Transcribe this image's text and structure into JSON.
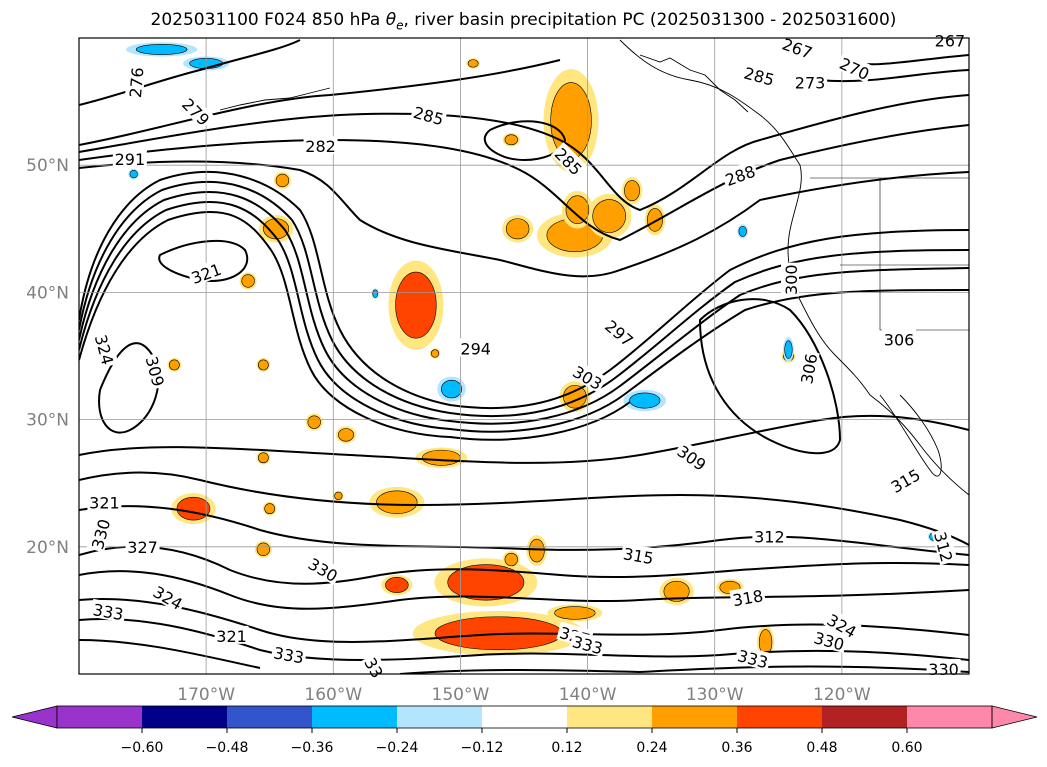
{
  "title": {
    "prefix": "2025031100 F024 850 hPa ",
    "theta": "θ",
    "theta_sub": "e",
    "suffix": ", river basin precipitation PC (2025031300 - 2025031600)"
  },
  "chart_data": {
    "type": "contour-map",
    "title": "2025031100 F024 850 hPa θe, river basin precipitation PC (2025031300 - 2025031600)",
    "lon_range": [
      -180,
      -110
    ],
    "lat_range": [
      10,
      60
    ],
    "grid": true,
    "lat_ticks": [
      {
        "value": 20,
        "label": "20°N"
      },
      {
        "value": 30,
        "label": "30°N"
      },
      {
        "value": 40,
        "label": "40°N"
      },
      {
        "value": 50,
        "label": "50°N"
      }
    ],
    "lon_ticks": [
      {
        "value": -170,
        "label": "170°W"
      },
      {
        "value": -160,
        "label": "160°W"
      },
      {
        "value": -150,
        "label": "150°W"
      },
      {
        "value": -140,
        "label": "140°W"
      },
      {
        "value": -130,
        "label": "130°W"
      },
      {
        "value": -120,
        "label": "120°W"
      }
    ],
    "colorbar": {
      "ticks": [
        "−0.60",
        "−0.48",
        "−0.36",
        "−0.24",
        "−0.12",
        "0.12",
        "0.24",
        "0.36",
        "0.48",
        "0.60"
      ],
      "colors": [
        "#9933cc",
        "#000088",
        "#3355cc",
        "#00bbff",
        "#b3e5ff",
        "#ffffff",
        "#ffe680",
        "#ffa000",
        "#ff4400",
        "#b22222",
        "#ff88aa"
      ]
    },
    "contour_labels": [
      {
        "text": "276",
        "lon": -175.5,
        "lat": 56.5,
        "angle": 85
      },
      {
        "text": "279",
        "lon": -170.8,
        "lat": 54.2,
        "angle": -45
      },
      {
        "text": "282",
        "lon": -161.0,
        "lat": 51.5,
        "angle": 0
      },
      {
        "text": "291",
        "lon": -176.0,
        "lat": 50.5,
        "angle": 0
      },
      {
        "text": "321",
        "lon": -170.0,
        "lat": 41.5,
        "angle": 20
      },
      {
        "text": "285",
        "lon": -152.5,
        "lat": 53.9,
        "angle": -15
      },
      {
        "text": "285",
        "lon": -141.5,
        "lat": 50.3,
        "angle": -45
      },
      {
        "text": "267",
        "lon": -123.5,
        "lat": 59.2,
        "angle": -20
      },
      {
        "text": "267",
        "lon": -111.5,
        "lat": 59.8,
        "angle": 0
      },
      {
        "text": "270",
        "lon": -119.0,
        "lat": 57.6,
        "angle": -25
      },
      {
        "text": "285",
        "lon": -126.5,
        "lat": 57.0,
        "angle": -15
      },
      {
        "text": "273",
        "lon": -122.5,
        "lat": 56.5,
        "angle": 0
      },
      {
        "text": "288",
        "lon": -128.0,
        "lat": 49.2,
        "angle": 20
      },
      {
        "text": "300",
        "lon": -124.0,
        "lat": 41.0,
        "angle": 90
      },
      {
        "text": "294",
        "lon": -148.8,
        "lat": 35.6,
        "angle": 0
      },
      {
        "text": "297",
        "lon": -137.5,
        "lat": 36.8,
        "angle": -40
      },
      {
        "text": "303",
        "lon": -140.0,
        "lat": 33.3,
        "angle": -30
      },
      {
        "text": "306",
        "lon": -122.6,
        "lat": 34.0,
        "angle": 80
      },
      {
        "text": "306",
        "lon": -115.5,
        "lat": 36.3,
        "angle": 0
      },
      {
        "text": "324",
        "lon": -178.0,
        "lat": 35.5,
        "angle": -75
      },
      {
        "text": "309",
        "lon": -174.0,
        "lat": 33.8,
        "angle": -75
      },
      {
        "text": "309",
        "lon": -131.8,
        "lat": 27.0,
        "angle": -35
      },
      {
        "text": "315",
        "lon": -115.0,
        "lat": 25.2,
        "angle": 30
      },
      {
        "text": "312",
        "lon": -125.7,
        "lat": 20.8,
        "angle": 0
      },
      {
        "text": "312",
        "lon": -112.0,
        "lat": 20.0,
        "angle": -75
      },
      {
        "text": "321",
        "lon": -178.0,
        "lat": 23.5,
        "angle": 0
      },
      {
        "text": "330",
        "lon": -178.3,
        "lat": 21.0,
        "angle": 75
      },
      {
        "text": "327",
        "lon": -175.0,
        "lat": 20.0,
        "angle": 0
      },
      {
        "text": "315",
        "lon": -136.0,
        "lat": 19.3,
        "angle": -10
      },
      {
        "text": "330",
        "lon": -160.8,
        "lat": 18.2,
        "angle": -30
      },
      {
        "text": "318",
        "lon": -127.4,
        "lat": 16.0,
        "angle": 10
      },
      {
        "text": "324",
        "lon": -173.0,
        "lat": 16.0,
        "angle": -30
      },
      {
        "text": "333",
        "lon": -177.7,
        "lat": 14.9,
        "angle": -10
      },
      {
        "text": "321",
        "lon": -168.0,
        "lat": 13.0,
        "angle": 0
      },
      {
        "text": "327",
        "lon": -141.0,
        "lat": 13.0,
        "angle": -15
      },
      {
        "text": "333",
        "lon": -140.0,
        "lat": 12.3,
        "angle": -15
      },
      {
        "text": "324",
        "lon": -120.0,
        "lat": 13.8,
        "angle": -30
      },
      {
        "text": "330",
        "lon": -121.0,
        "lat": 12.6,
        "angle": -15
      },
      {
        "text": "333",
        "lon": -163.5,
        "lat": 11.5,
        "angle": -10
      },
      {
        "text": "333",
        "lon": -127.0,
        "lat": 11.2,
        "angle": -15
      },
      {
        "text": "33",
        "lon": -156.8,
        "lat": 10.5,
        "angle": -60
      },
      {
        "text": "330",
        "lon": -112.0,
        "lat": 10.4,
        "angle": 0
      }
    ],
    "precip_patches": [
      {
        "lon": -148.0,
        "lat": 17.2,
        "rx": 3.0,
        "ry": 1.4,
        "level": 0.36
      },
      {
        "lon": -147.0,
        "lat": 13.2,
        "rx": 5.0,
        "ry": 1.3,
        "level": 0.36
      },
      {
        "lon": -153.5,
        "lat": 39.0,
        "rx": 1.6,
        "ry": 2.6,
        "level": 0.36
      },
      {
        "lon": -141.3,
        "lat": 53.5,
        "rx": 1.6,
        "ry": 3.0,
        "level": 0.24
      },
      {
        "lon": -141.0,
        "lat": 44.5,
        "rx": 2.2,
        "ry": 1.3,
        "level": 0.24
      },
      {
        "lon": -138.3,
        "lat": 46.0,
        "rx": 1.3,
        "ry": 1.3,
        "level": 0.24
      },
      {
        "lon": -140.8,
        "lat": 46.5,
        "rx": 0.9,
        "ry": 1.1,
        "level": 0.24
      },
      {
        "lon": -145.5,
        "lat": 45.0,
        "rx": 0.9,
        "ry": 0.8,
        "level": 0.24
      },
      {
        "lon": -164.5,
        "lat": 45.0,
        "rx": 1.0,
        "ry": 0.8,
        "level": 0.24
      },
      {
        "lon": -155.0,
        "lat": 23.5,
        "rx": 1.6,
        "ry": 0.9,
        "level": 0.24
      },
      {
        "lon": -171.0,
        "lat": 23.0,
        "rx": 1.3,
        "ry": 0.9,
        "level": 0.36
      },
      {
        "lon": -141.0,
        "lat": 31.8,
        "rx": 0.9,
        "ry": 0.9,
        "level": 0.24
      },
      {
        "lon": -151.5,
        "lat": 27.0,
        "rx": 1.5,
        "ry": 0.6,
        "level": 0.24
      },
      {
        "lon": -155.0,
        "lat": 17.0,
        "rx": 0.9,
        "ry": 0.6,
        "level": 0.36
      },
      {
        "lon": -133.0,
        "lat": 16.5,
        "rx": 1.0,
        "ry": 0.8,
        "level": 0.24
      },
      {
        "lon": -128.8,
        "lat": 16.8,
        "rx": 0.8,
        "ry": 0.5,
        "level": 0.24
      },
      {
        "lon": -144.0,
        "lat": 19.7,
        "rx": 0.6,
        "ry": 0.9,
        "level": 0.24
      },
      {
        "lon": -136.5,
        "lat": 48.0,
        "rx": 0.6,
        "ry": 0.8,
        "level": 0.24
      },
      {
        "lon": -134.7,
        "lat": 45.7,
        "rx": 0.6,
        "ry": 0.9,
        "level": 0.24
      },
      {
        "lon": -161.5,
        "lat": 29.8,
        "rx": 0.5,
        "ry": 0.5,
        "level": 0.24
      },
      {
        "lon": -159.0,
        "lat": 28.8,
        "rx": 0.6,
        "ry": 0.5,
        "level": 0.24
      },
      {
        "lon": -146.0,
        "lat": 19.0,
        "rx": 0.5,
        "ry": 0.5,
        "level": 0.24
      },
      {
        "lon": -165.5,
        "lat": 19.8,
        "rx": 0.5,
        "ry": 0.5,
        "level": 0.24
      },
      {
        "lon": -126.0,
        "lat": 12.5,
        "rx": 0.5,
        "ry": 1.0,
        "level": 0.24
      },
      {
        "lon": -152.0,
        "lat": 35.2,
        "rx": 0.3,
        "ry": 0.3,
        "level": 0.24
      },
      {
        "lon": -149.0,
        "lat": 58.0,
        "rx": 0.4,
        "ry": 0.3,
        "level": 0.24
      },
      {
        "lon": -146.0,
        "lat": 52.0,
        "rx": 0.5,
        "ry": 0.4,
        "level": 0.24
      },
      {
        "lon": -164.0,
        "lat": 48.8,
        "rx": 0.5,
        "ry": 0.5,
        "level": 0.24
      },
      {
        "lon": -165.5,
        "lat": 34.3,
        "rx": 0.4,
        "ry": 0.4,
        "level": 0.24
      },
      {
        "lon": -172.5,
        "lat": 34.3,
        "rx": 0.4,
        "ry": 0.4,
        "level": 0.24
      },
      {
        "lon": -165.5,
        "lat": 27.0,
        "rx": 0.4,
        "ry": 0.4,
        "level": 0.24
      },
      {
        "lon": -159.6,
        "lat": 24.0,
        "rx": 0.3,
        "ry": 0.3,
        "level": 0.24
      },
      {
        "lon": -165.0,
        "lat": 23.0,
        "rx": 0.4,
        "ry": 0.4,
        "level": 0.24
      },
      {
        "lon": -166.7,
        "lat": 40.9,
        "rx": 0.5,
        "ry": 0.5,
        "level": 0.24
      },
      {
        "lon": -141.0,
        "lat": 14.8,
        "rx": 1.6,
        "ry": 0.5,
        "level": 0.24
      },
      {
        "lon": -124.2,
        "lat": 35.0,
        "rx": 0.4,
        "ry": 0.4,
        "level": 0.24
      }
    ],
    "neg_patches": [
      {
        "lon": -173.5,
        "lat": 59.1,
        "rx": 2.0,
        "ry": 0.4,
        "level": -0.24
      },
      {
        "lon": -170.0,
        "lat": 58.0,
        "rx": 1.3,
        "ry": 0.4,
        "level": -0.24
      },
      {
        "lon": -150.7,
        "lat": 32.4,
        "rx": 0.8,
        "ry": 0.7,
        "level": -0.24
      },
      {
        "lon": -135.5,
        "lat": 31.5,
        "rx": 1.2,
        "ry": 0.6,
        "level": -0.24
      },
      {
        "lon": -124.2,
        "lat": 35.5,
        "rx": 0.3,
        "ry": 0.7,
        "level": -0.24
      },
      {
        "lon": -175.7,
        "lat": 49.3,
        "rx": 0.3,
        "ry": 0.3,
        "level": -0.24
      },
      {
        "lon": -156.7,
        "lat": 39.9,
        "rx": 0.2,
        "ry": 0.3,
        "level": -0.24
      },
      {
        "lon": -127.8,
        "lat": 44.8,
        "rx": 0.3,
        "ry": 0.4,
        "level": -0.24
      },
      {
        "lon": -112.8,
        "lat": 20.8,
        "rx": 0.3,
        "ry": 0.3,
        "level": -0.24
      }
    ]
  }
}
